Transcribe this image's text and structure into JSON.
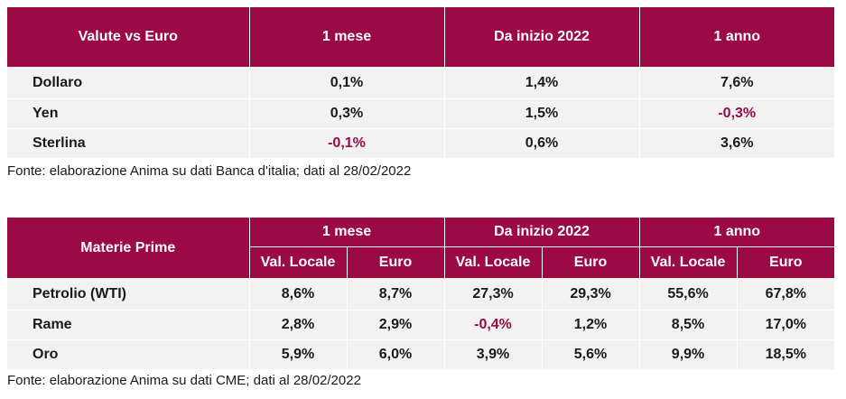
{
  "fx": {
    "headers": [
      "Valute vs Euro",
      "1 mese",
      "Da inizio 2022",
      "1 anno"
    ],
    "rows": [
      {
        "name": "Dollaro",
        "m1": "0,1%",
        "ytd": "1,4%",
        "y1": "7,6%"
      },
      {
        "name": "Yen",
        "m1": "0,3%",
        "ytd": "1,5%",
        "y1": "-0,3%"
      },
      {
        "name": "Sterlina",
        "m1": "-0,1%",
        "ytd": "0,6%",
        "y1": "3,6%"
      }
    ],
    "note": "Fonte: elaborazione Anima su dati Banca d'italia; dati al 28/02/2022"
  },
  "commodities": {
    "header_label": "Materie Prime",
    "periods": [
      "1 mese",
      "Da inizio 2022",
      "1 anno"
    ],
    "subheaders": [
      "Val. Locale",
      "Euro",
      "Val. Locale",
      "Euro",
      "Val. Locale",
      "Euro"
    ],
    "rows": [
      {
        "name": "Petrolio (WTI)",
        "values": [
          "8,6%",
          "8,7%",
          "27,3%",
          "29,3%",
          "55,6%",
          "67,8%"
        ]
      },
      {
        "name": "Rame",
        "values": [
          "2,8%",
          "2,9%",
          "-0,4%",
          "1,2%",
          "8,5%",
          "17,0%"
        ]
      },
      {
        "name": "Oro",
        "values": [
          "5,9%",
          "6,0%",
          "3,9%",
          "5,6%",
          "9,9%",
          "18,5%"
        ]
      }
    ],
    "note": "Fonte: elaborazione Anima su dati CME; dati al 28/02/2022"
  },
  "colors": {
    "header_bg": "#9b0a45",
    "negative": "#9b0a45",
    "row_bg": "#f2f2f2"
  }
}
